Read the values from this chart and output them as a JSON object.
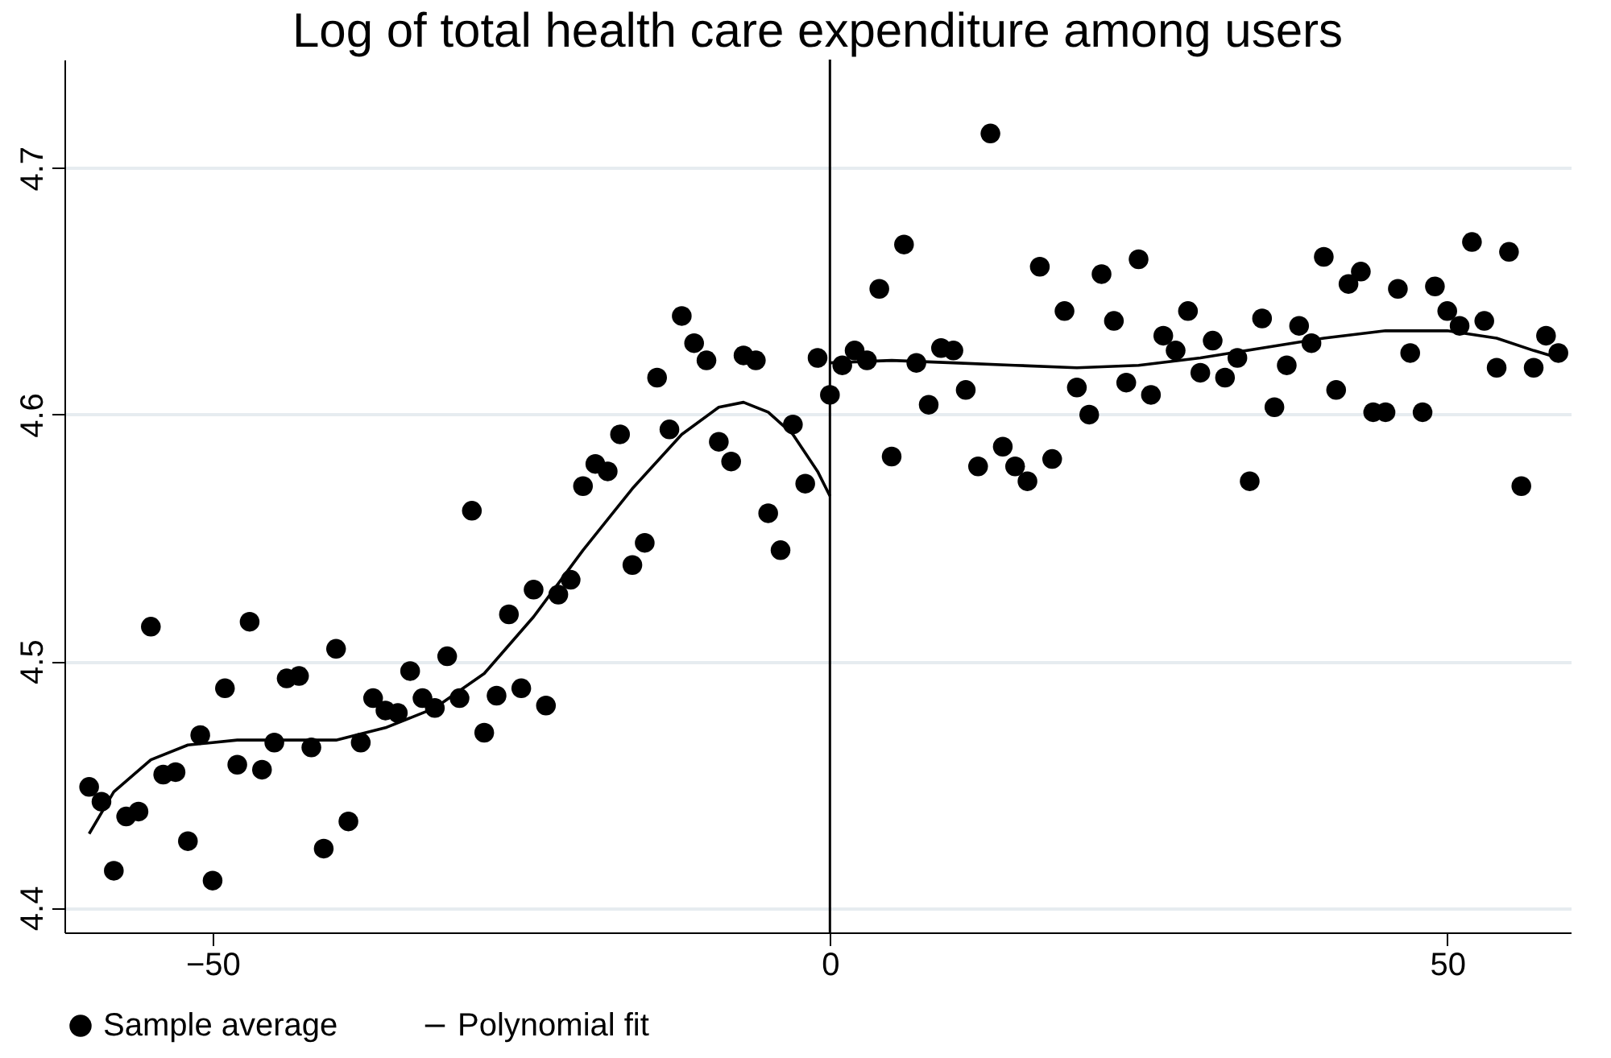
{
  "chart_data": {
    "type": "scatter",
    "title": "Log of total health care expenditure among users",
    "xlim": [
      -62,
      60
    ],
    "xticks": [
      -50,
      0,
      50
    ],
    "ylim": [
      4.39,
      4.744
    ],
    "yticks": [
      4.4,
      4.5,
      4.6,
      4.7
    ],
    "grid": "y",
    "legend": "bottom",
    "ref_lines": [
      {
        "axis": "x",
        "value": 0,
        "color": "#000000"
      }
    ],
    "series": [
      {
        "name": "Sample average",
        "marker": "circle",
        "color": "#000000",
        "x": [
          -60,
          -59,
          -58,
          -57,
          -56,
          -55,
          -54,
          -53,
          -52,
          -51,
          -50,
          -49,
          -48,
          -47,
          -46,
          -45,
          -44,
          -43,
          -42,
          -41,
          -40,
          -39,
          -38,
          -37,
          -36,
          -35,
          -34,
          -33,
          -32,
          -31,
          -30,
          -29,
          -28,
          -27,
          -26,
          -25,
          -24,
          -23,
          -22,
          -21,
          -20,
          -19,
          -18,
          -17,
          -16,
          -15,
          -14,
          -13,
          -12,
          -11,
          -10,
          -9,
          -8,
          -7,
          -6,
          -5,
          -4,
          -3,
          -2,
          -1,
          0,
          1,
          2,
          3,
          4,
          5,
          6,
          7,
          8,
          9,
          10,
          11,
          12,
          13,
          14,
          15,
          16,
          17,
          18,
          19,
          20,
          21,
          22,
          23,
          24,
          25,
          26,
          27,
          28,
          29,
          30,
          31,
          32,
          33,
          34,
          35,
          36,
          37,
          38,
          39,
          40,
          41,
          42,
          43,
          44,
          45,
          46,
          47,
          48,
          49,
          50,
          51,
          52,
          53,
          54,
          55,
          56,
          57,
          58,
          59
        ],
        "values": [
          4.449,
          4.443,
          4.415,
          4.437,
          4.439,
          4.514,
          4.454,
          4.455,
          4.427,
          4.47,
          4.411,
          4.489,
          4.458,
          4.516,
          4.456,
          4.467,
          4.493,
          4.494,
          4.465,
          4.424,
          4.505,
          4.435,
          4.467,
          4.485,
          4.48,
          4.479,
          4.496,
          4.485,
          4.481,
          4.502,
          4.485,
          4.561,
          4.471,
          4.486,
          4.519,
          4.489,
          4.529,
          4.482,
          4.527,
          4.533,
          4.571,
          4.58,
          4.577,
          4.592,
          4.539,
          4.548,
          4.615,
          4.594,
          4.64,
          4.629,
          4.622,
          4.589,
          4.581,
          4.624,
          4.622,
          4.56,
          4.545,
          4.596,
          4.572,
          4.623,
          4.608,
          4.62,
          4.626,
          4.622,
          4.651,
          4.583,
          4.669,
          4.621,
          4.604,
          4.627,
          4.626,
          4.61,
          4.579,
          4.714,
          4.587,
          4.579,
          4.573,
          4.66,
          4.582,
          4.642,
          4.611,
          4.6,
          4.657,
          4.638,
          4.613,
          4.663,
          4.608,
          4.632,
          4.626,
          4.642,
          4.617,
          4.63,
          4.615,
          4.623,
          4.573,
          4.639,
          4.603,
          4.62,
          4.636,
          4.629,
          4.664,
          4.61,
          4.653,
          4.658,
          4.601,
          4.601,
          4.651,
          4.625,
          4.601,
          4.652,
          4.642,
          4.636,
          4.67,
          4.638,
          4.619,
          4.666,
          4.571,
          4.619,
          4.632,
          4.625
        ]
      },
      {
        "name": "Polynomial fit",
        "type": "line",
        "marker": "none",
        "color": "#000000",
        "line_style": "solid",
        "x": [
          -60,
          -58,
          -55,
          -52,
          -48,
          -44,
          -40,
          -36,
          -32,
          -28,
          -24,
          -20,
          -16,
          -12,
          -9,
          -7,
          -5,
          -3,
          -1,
          0,
          null,
          0,
          5,
          10,
          15,
          20,
          25,
          30,
          35,
          40,
          45,
          50,
          54,
          57,
          59
        ],
        "values": [
          4.43,
          4.447,
          4.46,
          4.466,
          4.468,
          4.468,
          4.468,
          4.473,
          4.481,
          4.495,
          4.518,
          4.545,
          4.57,
          4.592,
          4.603,
          4.605,
          4.601,
          4.592,
          4.577,
          4.567,
          null,
          4.621,
          4.622,
          4.621,
          4.62,
          4.619,
          4.62,
          4.623,
          4.627,
          4.631,
          4.634,
          4.634,
          4.631,
          4.626,
          4.623
        ]
      }
    ]
  }
}
